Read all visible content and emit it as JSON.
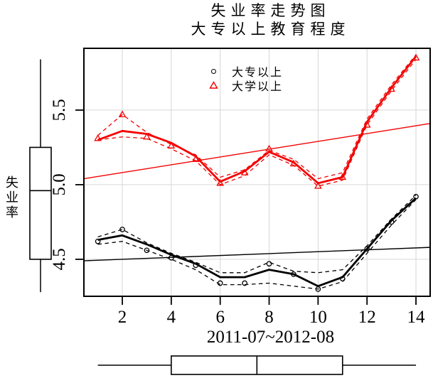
{
  "title": "失业率走势图",
  "subtitle": "大专以上教育程度",
  "chart_data": {
    "type": "line",
    "x": [
      1,
      2,
      3,
      4,
      5,
      6,
      7,
      8,
      9,
      10,
      11,
      12,
      13,
      14
    ],
    "axes": {
      "xlabel": "2011-07~2012-08",
      "ylabel": "失业率",
      "xticks": [
        2,
        4,
        6,
        8,
        10,
        12,
        14
      ],
      "yticks": [
        4.5,
        5.0,
        5.5
      ],
      "ytick_labels": [
        "4.5",
        "5.0",
        "5.5"
      ],
      "xlim": [
        0.43,
        14.58
      ],
      "ylim": [
        4.252,
        5.914
      ],
      "grid": true
    },
    "legend": [
      {
        "label": "大专以上",
        "marker": "circle",
        "color": "#000000"
      },
      {
        "label": "大学以上",
        "marker": "triangle",
        "color": "#f40000"
      }
    ],
    "series": [
      {
        "name": "大专以上",
        "marker": "circle",
        "color": "#000000",
        "values": [
          4.62,
          4.7,
          4.56,
          4.51,
          4.46,
          4.34,
          4.34,
          4.47,
          4.4,
          4.3,
          4.37,
          4.57,
          4.75,
          4.92
        ],
        "smooth": [
          4.63,
          4.66,
          4.6,
          4.53,
          4.47,
          4.38,
          4.38,
          4.43,
          4.4,
          4.32,
          4.38,
          4.57,
          4.76,
          4.91
        ],
        "spread_upper": [
          4.65,
          4.7,
          4.61,
          4.54,
          4.48,
          4.41,
          4.41,
          4.48,
          4.42,
          4.41,
          4.43,
          4.59,
          4.77,
          4.93
        ],
        "spread_lower": [
          4.6,
          4.62,
          4.56,
          4.5,
          4.43,
          4.33,
          4.33,
          4.34,
          4.32,
          4.3,
          4.35,
          4.54,
          4.73,
          4.9
        ],
        "regression": {
          "x": [
            0.43,
            14.58
          ],
          "y": [
            4.49,
            4.58
          ]
        }
      },
      {
        "name": "大学以上",
        "marker": "triangle",
        "color": "#f40000",
        "values": [
          5.31,
          5.47,
          5.32,
          5.26,
          5.17,
          5.01,
          5.08,
          5.24,
          5.14,
          4.99,
          5.05,
          5.4,
          5.64,
          5.85
        ],
        "smooth": [
          5.3,
          5.36,
          5.34,
          5.28,
          5.19,
          5.02,
          5.09,
          5.22,
          5.15,
          5.01,
          5.05,
          5.42,
          5.65,
          5.86
        ],
        "spread_upper": [
          5.33,
          5.47,
          5.35,
          5.27,
          5.2,
          5.05,
          5.1,
          5.23,
          5.17,
          5.04,
          5.08,
          5.44,
          5.67,
          5.87
        ],
        "spread_lower": [
          5.3,
          5.32,
          5.31,
          5.24,
          5.16,
          5.0,
          5.06,
          5.2,
          5.13,
          4.99,
          5.03,
          5.4,
          5.63,
          5.84
        ],
        "regression": {
          "x": [
            0.43,
            14.58
          ],
          "y": [
            5.04,
            5.41
          ]
        }
      }
    ],
    "marginal_boxplots": {
      "y_axis": {
        "min": 4.28,
        "q1": 4.5,
        "median": 4.96,
        "q3": 5.25,
        "max": 5.84
      },
      "x_axis": {
        "min": 1,
        "q1": 4,
        "median": 7.5,
        "q3": 11,
        "max": 14
      }
    },
    "grid_color": "#d6d6d6",
    "frame_color": "#000000"
  }
}
